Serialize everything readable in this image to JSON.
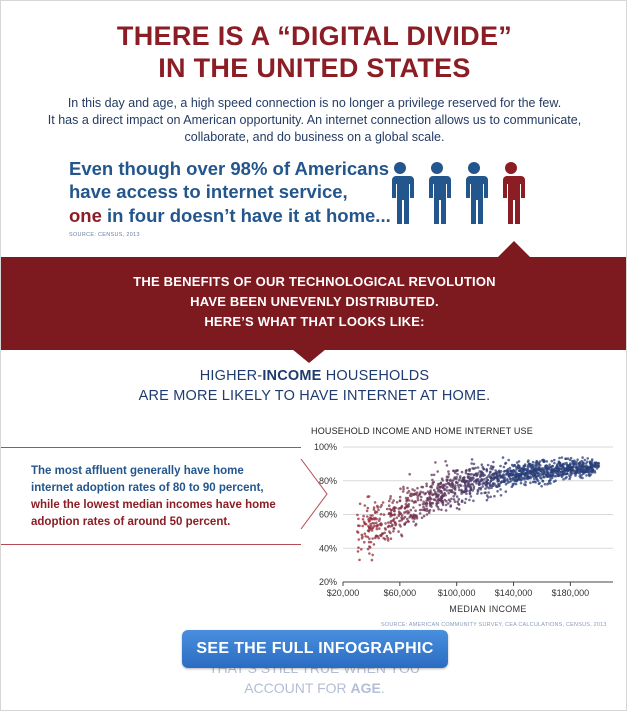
{
  "header": {
    "title_line1": "THERE IS A “DIGITAL DIVIDE”",
    "title_line2": "IN THE UNITED STATES"
  },
  "intro": {
    "line1": "In this day and age, a high speed connection is no longer a privilege reserved for the few.",
    "line2": "It has a direct impact on American opportunity. An internet connection allows us to communicate,",
    "line3": "collaborate, and do business on a global scale."
  },
  "stat": {
    "line1": "Even though over 98% of Americans",
    "line2": "have access to internet service,",
    "line3_highlight": "one",
    "line3_rest": " in four doesn’t have it at home...",
    "source": "SOURCE: CENSUS, 2013"
  },
  "people_icons": {
    "count": 4,
    "highlighted": 1,
    "color_blue": "#23568d",
    "color_red": "#8b1d24"
  },
  "band": {
    "line1": "THE BENEFITS OF OUR TECHNOLOGICAL REVOLUTION",
    "line2": "HAVE BEEN UNEVENLY DISTRIBUTED.",
    "line3": "HERE’S WHAT THAT LOOKS LIKE:",
    "color": "#7c1a20"
  },
  "section": {
    "line1_pre": "HIGHER-",
    "line1_bold": "INCOME",
    "line1_post": " HOUSEHOLDS",
    "line2": "ARE MORE LIKELY TO HAVE INTERNET AT HOME."
  },
  "callout": {
    "line1": "The most affluent generally have home",
    "line2": "internet adoption rates of 80 to 90 percent,",
    "line3": "while the lowest median incomes have home",
    "line4": "adoption rates of around 50 percent."
  },
  "chart_data": {
    "type": "scatter",
    "title": "HOUSEHOLD INCOME AND HOME INTERNET USE",
    "xlabel": "MEDIAN INCOME",
    "ylabel": "",
    "x_ticks": [
      "$20,000",
      "$60,000",
      "$100,000",
      "$140,000",
      "$180,000"
    ],
    "x_tick_values": [
      20000,
      60000,
      100000,
      140000,
      180000
    ],
    "y_ticks": [
      "20%",
      "40%",
      "60%",
      "80%",
      "100%"
    ],
    "y_tick_values": [
      20,
      40,
      60,
      80,
      100
    ],
    "xlim": [
      20000,
      210000
    ],
    "ylim": [
      20,
      100
    ],
    "grid": true,
    "trend": [
      {
        "x": 30000,
        "y_center": 48,
        "spread": 8
      },
      {
        "x": 60000,
        "y_center": 62,
        "spread": 8
      },
      {
        "x": 100000,
        "y_center": 77,
        "spread": 6
      },
      {
        "x": 140000,
        "y_center": 84,
        "spread": 4
      },
      {
        "x": 180000,
        "y_center": 87,
        "spread": 3
      },
      {
        "x": 200000,
        "y_center": 88,
        "spread": 2
      }
    ],
    "color_low": "#9b2a35",
    "color_high": "#2a3f7a",
    "source": "SOURCE: AMERICAN COMMUNITY SURVEY, CEA CALCULATIONS, CENSUS, 2013"
  },
  "cta": {
    "label": "SEE THE FULL INFOGRAPHIC"
  },
  "faded": {
    "line1": "THAT’S STILL TRUE WHEN YOU",
    "line2_pre": "ACCOUNT FOR ",
    "line2_bold": "AGE",
    "line2_post": "."
  }
}
